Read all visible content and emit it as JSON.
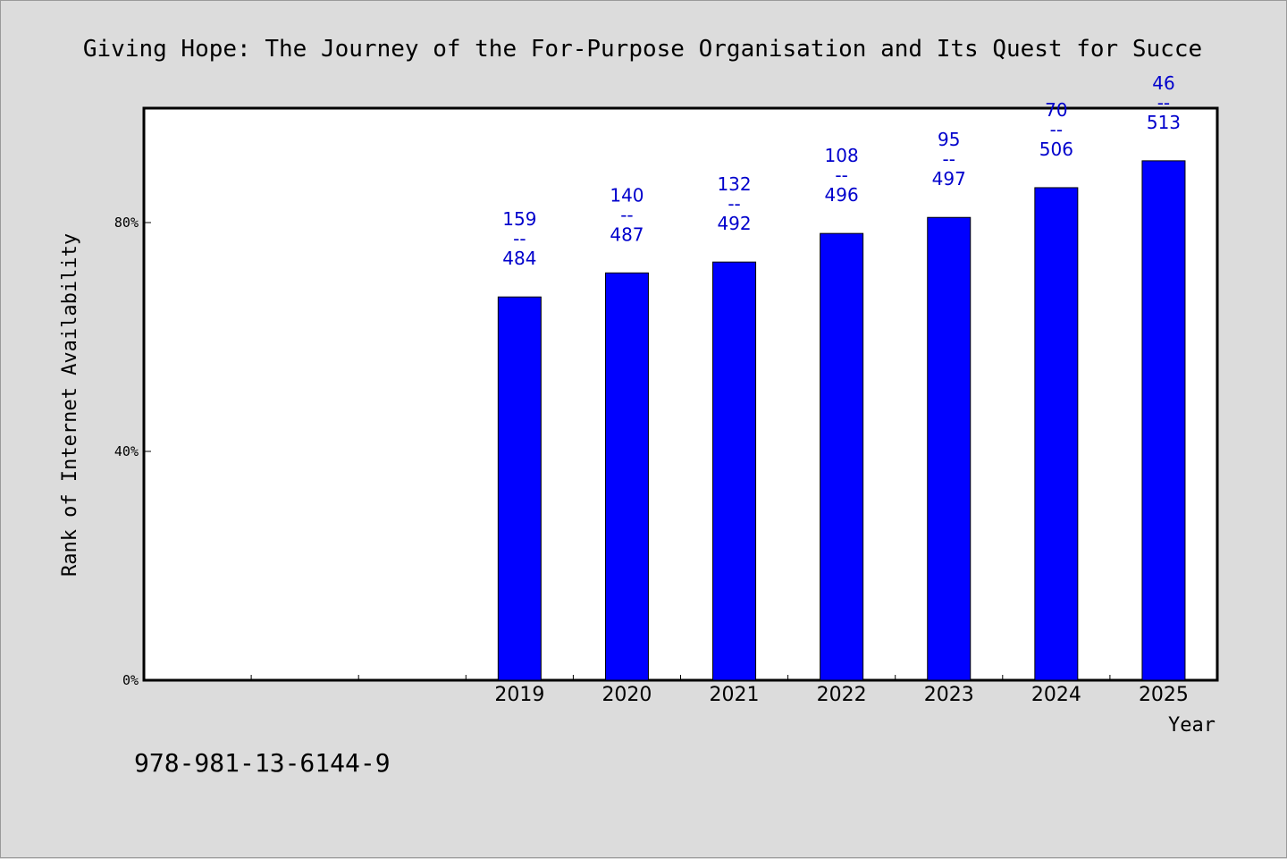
{
  "chart_data": {
    "type": "bar",
    "title": "Giving Hope: The Journey of the For-Purpose Organisation and Its Quest for Succe",
    "xlabel": "Year",
    "ylabel": "Rank of Internet Availability",
    "categories": [
      "",
      "",
      "",
      "2019",
      "2020",
      "2021",
      "2022",
      "2023",
      "2024",
      "2025"
    ],
    "values": [
      null,
      null,
      null,
      67,
      71.2,
      73.1,
      78.1,
      80.9,
      86.1,
      90.8
    ],
    "data_labels": [
      null,
      null,
      null,
      [
        "159",
        "--",
        "484"
      ],
      [
        "140",
        "--",
        "487"
      ],
      [
        "132",
        "--",
        "492"
      ],
      [
        "108",
        "--",
        "496"
      ],
      [
        "95",
        "--",
        "497"
      ],
      [
        "70",
        "--",
        "506"
      ],
      [
        "46",
        "--",
        "513"
      ]
    ],
    "ylim": [
      0,
      100
    ],
    "yticks": [
      0,
      40,
      80
    ],
    "ytick_labels": [
      "0%",
      "40%",
      "80%"
    ],
    "grid": false,
    "colors": {
      "bar": "#0000ff",
      "bar_edge": "#000000",
      "label": "#0000cc",
      "plot_bg": "#ffffff",
      "page_bg": "#dcdcdc"
    }
  },
  "footer": {
    "isbn": "978-981-13-6144-9"
  }
}
